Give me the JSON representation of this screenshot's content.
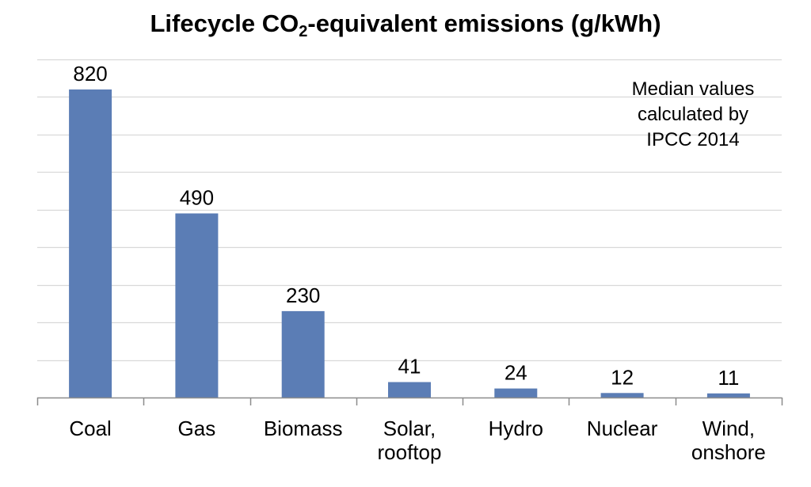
{
  "chart_data": {
    "type": "bar",
    "title": {
      "prefix": "Lifecycle CO",
      "subscript": "2",
      "suffix": "-equivalent emissions (g/kWh)"
    },
    "categories": [
      [
        "Coal"
      ],
      [
        "Gas"
      ],
      [
        "Biomass"
      ],
      [
        "Solar,",
        "rooftop"
      ],
      [
        "Hydro"
      ],
      [
        "Nuclear"
      ],
      [
        "Wind,",
        "onshore"
      ]
    ],
    "values": [
      820,
      490,
      230,
      41,
      24,
      12,
      11
    ],
    "data_labels": [
      "820",
      "490",
      "230",
      "41",
      "24",
      "12",
      "11"
    ],
    "annotation": [
      "Median values",
      "calculated by",
      "IPCC 2014"
    ],
    "xlabel": "",
    "ylabel": "",
    "ylim": [
      0,
      900
    ],
    "gridline_step": 100,
    "y_tick_labels_shown": false,
    "grid": true,
    "legend": "none",
    "annotation_placement": "top-right",
    "colors": {
      "bar": "#5b7db5",
      "grid": "#d9d9d9",
      "axis": "#8c8c8c"
    }
  }
}
